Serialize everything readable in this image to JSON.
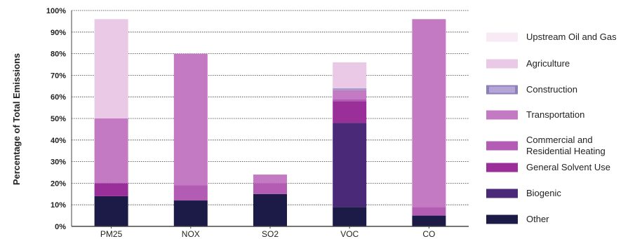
{
  "chart_data": {
    "type": "bar",
    "stacked": true,
    "ylabel": "Percentage of Total Emissions",
    "ylim": [
      0,
      100
    ],
    "yticks": [
      "0%",
      "10%",
      "20%",
      "30%",
      "40%",
      "50%",
      "60%",
      "70%",
      "80%",
      "90%",
      "100%"
    ],
    "grid": true,
    "legend_position": "right",
    "categories": [
      "PM25",
      "NOX",
      "SO2",
      "VOC",
      "CO"
    ],
    "series": [
      {
        "name": "Other",
        "color": "#1c1b47",
        "values": [
          14,
          12,
          15,
          9,
          5
        ]
      },
      {
        "name": "Biogenic",
        "color": "#4a2a78",
        "values": [
          0,
          0,
          0,
          39,
          0
        ]
      },
      {
        "name": "General Solvent Use",
        "color": "#9a2f9a",
        "values": [
          6,
          0,
          0,
          10,
          0
        ]
      },
      {
        "name": "Commercial and Residential Heating",
        "color": "#b35cb3",
        "values": [
          0,
          7,
          5,
          1,
          4
        ]
      },
      {
        "name": "Transportation",
        "color": "#c37ac3",
        "values": [
          30,
          61,
          4,
          4,
          87
        ]
      },
      {
        "name": "Construction",
        "color": "#a89ac8",
        "values": [
          0,
          0,
          0,
          1,
          0
        ]
      },
      {
        "name": "Agriculture",
        "color": "#e9c9e6",
        "values": [
          46,
          0,
          0,
          12,
          0
        ]
      },
      {
        "name": "Upstream Oil and Gas",
        "color": "#f7eaf5",
        "values": [
          0,
          0,
          0,
          0,
          0
        ]
      }
    ],
    "legend_order": [
      "Upstream Oil and Gas",
      "Agriculture",
      "Construction",
      "Transportation",
      "Commercial and Residential Heating",
      "General Solvent Use",
      "Biogenic",
      "Other"
    ],
    "legend_lines": {
      "Commercial and Residential Heating": [
        "Commercial and",
        "Residential Heating"
      ]
    }
  }
}
